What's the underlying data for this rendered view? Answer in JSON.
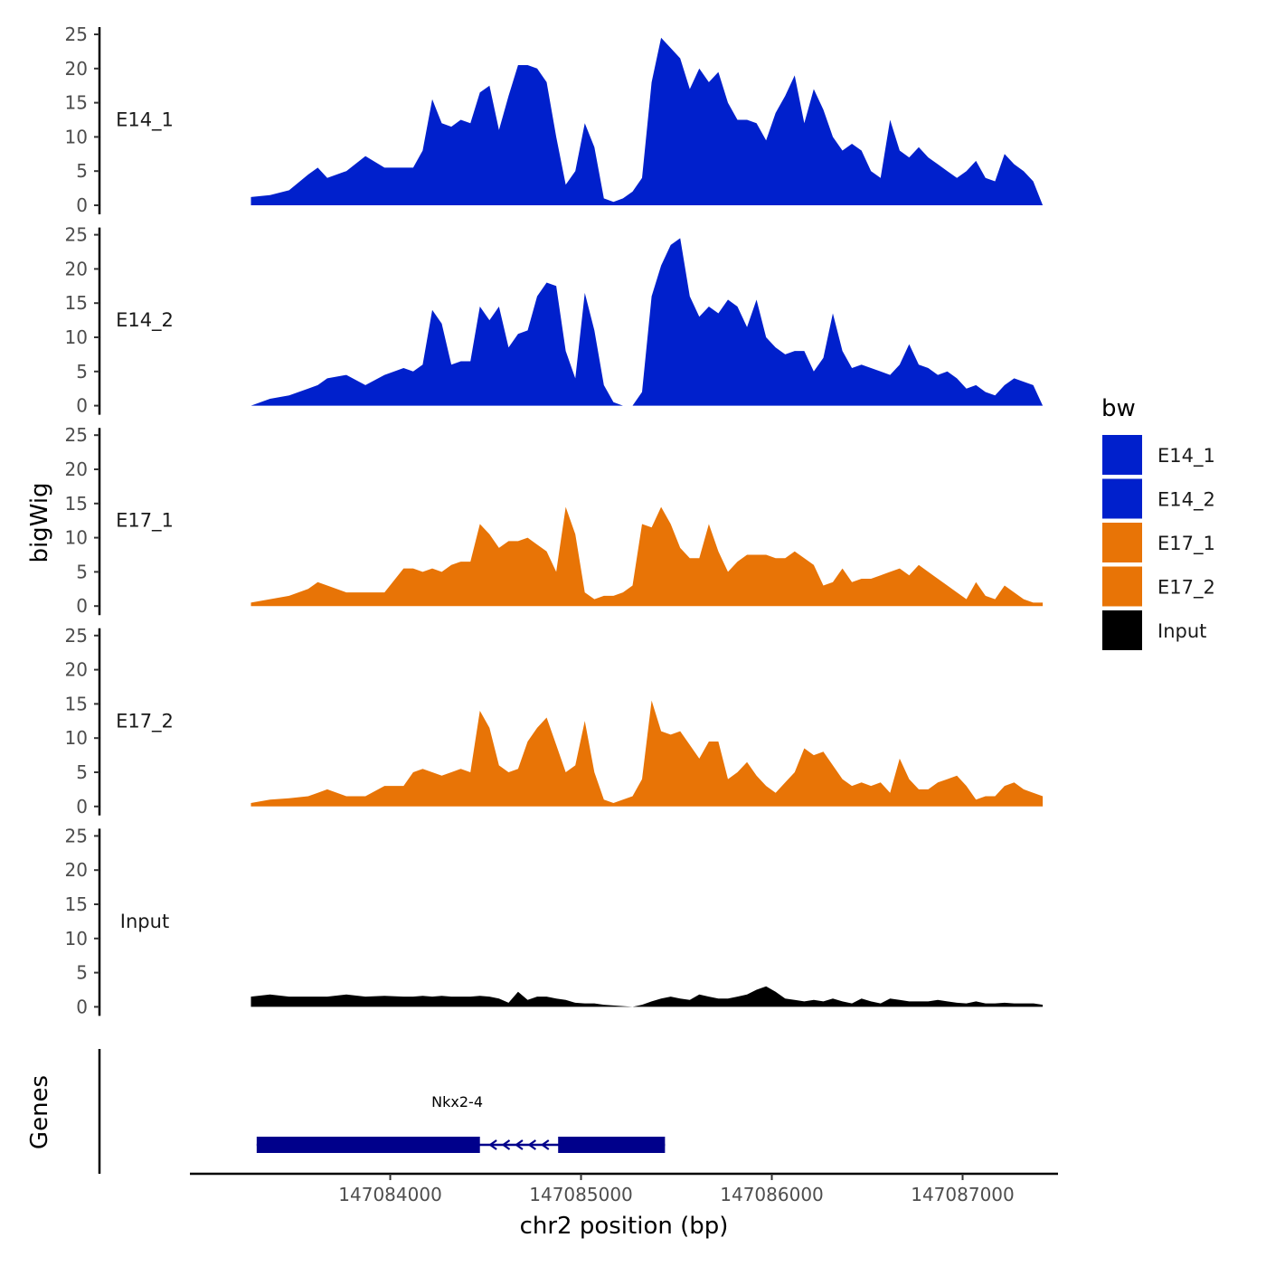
{
  "chart_data": {
    "type": "area",
    "ylabel": "bigWig",
    "xlabel": "chr2 position (bp)",
    "xlim": [
      147082950,
      147087500
    ],
    "ylim": [
      0,
      25
    ],
    "y_ticks": [
      0,
      5,
      10,
      15,
      20,
      25
    ],
    "x_ticks": [
      147084000,
      147085000,
      147086000,
      147087000
    ],
    "x_tick_labels": [
      "147084000",
      "147085000",
      "147086000",
      "147087000"
    ],
    "y_tick_labels": [
      "0",
      "5",
      "10",
      "15",
      "20",
      "25"
    ],
    "legend": {
      "title": "bw",
      "position": "right",
      "entries": [
        {
          "label": "E14_1",
          "color": "#0020CC"
        },
        {
          "label": "E14_2",
          "color": "#0020CC"
        },
        {
          "label": "E17_1",
          "color": "#E87406"
        },
        {
          "label": "E17_2",
          "color": "#E87406"
        },
        {
          "label": "Input",
          "color": "#000000"
        }
      ]
    },
    "x": [
      147083270,
      147083370,
      147083470,
      147083570,
      147083620,
      147083670,
      147083770,
      147083870,
      147083970,
      147084070,
      147084120,
      147084170,
      147084220,
      147084270,
      147084320,
      147084370,
      147084420,
      147084470,
      147084520,
      147084570,
      147084620,
      147084670,
      147084720,
      147084770,
      147084820,
      147084870,
      147084920,
      147084970,
      147085020,
      147085070,
      147085120,
      147085170,
      147085220,
      147085270,
      147085320,
      147085370,
      147085420,
      147085470,
      147085520,
      147085570,
      147085620,
      147085670,
      147085720,
      147085770,
      147085820,
      147085870,
      147085920,
      147085970,
      147086020,
      147086070,
      147086120,
      147086170,
      147086220,
      147086270,
      147086320,
      147086370,
      147086420,
      147086470,
      147086520,
      147086570,
      147086620,
      147086670,
      147086720,
      147086770,
      147086820,
      147086870,
      147086920,
      147086970,
      147087020,
      147087070,
      147087120,
      147087170,
      147087220,
      147087270,
      147087320,
      147087370,
      147087420
    ],
    "series": [
      {
        "name": "E14_1",
        "color": "#0020CC",
        "values": [
          1.2,
          1.5,
          2.2,
          4.5,
          5.5,
          4,
          5,
          7.2,
          5.5,
          5.5,
          5.5,
          8,
          15.5,
          12,
          11.5,
          12.5,
          12,
          16.5,
          17.5,
          11,
          16,
          20.5,
          20.5,
          20,
          18,
          10,
          3,
          5,
          12,
          8.5,
          1,
          0.5,
          1,
          2,
          4,
          18,
          24.5,
          23,
          21.5,
          17,
          20,
          18,
          19.5,
          15,
          12.5,
          12.5,
          12,
          9.5,
          13.5,
          16,
          19,
          12,
          17,
          14,
          10,
          8,
          9,
          8,
          5,
          4,
          12.5,
          8,
          7,
          8.5,
          7,
          6,
          5,
          4,
          5,
          6.5,
          4,
          3.5,
          7.5,
          6,
          5,
          3.5,
          0
        ]
      },
      {
        "name": "E14_2",
        "color": "#0020CC",
        "values": [
          0,
          1,
          1.5,
          2.5,
          3,
          4,
          4.5,
          3,
          4.5,
          5.5,
          5,
          6,
          14,
          12,
          6,
          6.5,
          6.5,
          14.5,
          12.5,
          14.5,
          8.5,
          10.5,
          11,
          16,
          18,
          17.5,
          8,
          4,
          16.5,
          11,
          3,
          0.5,
          0,
          0,
          2,
          16,
          20.5,
          23.5,
          24.5,
          16,
          13,
          14.5,
          13.5,
          15.5,
          14.5,
          11.5,
          15.5,
          10,
          8.5,
          7.5,
          8,
          8,
          5,
          7,
          13.5,
          8,
          5.5,
          6,
          5.5,
          5,
          4.5,
          6,
          9,
          6,
          5.5,
          4.5,
          5,
          4,
          2.5,
          3,
          2,
          1.5,
          3,
          4,
          3.5,
          3,
          0
        ]
      },
      {
        "name": "E17_1",
        "color": "#E87406",
        "values": [
          0.5,
          1,
          1.5,
          2.5,
          3.5,
          3,
          2,
          2,
          2,
          5.5,
          5.5,
          5,
          5.5,
          5,
          6,
          6.5,
          6.5,
          12,
          10.5,
          8.5,
          9.5,
          9.5,
          10,
          9,
          8,
          5,
          14.5,
          10.5,
          2,
          1,
          1.5,
          1.5,
          2,
          3,
          12,
          11.5,
          14.5,
          12,
          8.5,
          7,
          7,
          12,
          8,
          5,
          6.5,
          7.5,
          7.5,
          7.5,
          7,
          7,
          8,
          7,
          6,
          3,
          3.5,
          5.5,
          3.5,
          4,
          4,
          4.5,
          5,
          5.5,
          4.5,
          6,
          5,
          4,
          3,
          2,
          1,
          3.5,
          1.5,
          1,
          3,
          2,
          1,
          0.5,
          0.5
        ]
      },
      {
        "name": "E17_2",
        "color": "#E87406",
        "values": [
          0.5,
          1,
          1.2,
          1.5,
          2,
          2.5,
          1.5,
          1.5,
          3,
          3,
          5,
          5.5,
          5,
          4.5,
          5,
          5.5,
          5,
          14,
          11.5,
          6,
          5,
          5.5,
          9.5,
          11.5,
          13,
          9,
          5,
          6,
          12.5,
          5,
          1,
          0.5,
          1,
          1.5,
          4,
          15.5,
          11,
          10.5,
          11,
          9,
          7,
          9.5,
          9.5,
          4,
          5,
          6.5,
          4.5,
          3,
          2,
          3.5,
          5,
          8.5,
          7.5,
          8,
          6,
          4,
          3,
          3.5,
          3,
          3.5,
          2,
          7,
          4,
          2.5,
          2.5,
          3.5,
          4,
          4.5,
          3,
          1,
          1.5,
          1.5,
          3,
          3.5,
          2.5,
          2,
          1.5
        ]
      },
      {
        "name": "Input",
        "color": "#000000",
        "values": [
          1.5,
          1.8,
          1.5,
          1.5,
          1.5,
          1.5,
          1.8,
          1.5,
          1.6,
          1.5,
          1.5,
          1.6,
          1.5,
          1.6,
          1.5,
          1.5,
          1.5,
          1.6,
          1.5,
          1.2,
          0.6,
          2.2,
          1,
          1.5,
          1.5,
          1.2,
          1,
          0.6,
          0.5,
          0.5,
          0.3,
          0.2,
          0.1,
          0,
          0.3,
          0.8,
          1.2,
          1.5,
          1.2,
          1,
          1.8,
          1.5,
          1.2,
          1.2,
          1.5,
          1.8,
          2.5,
          3,
          2.2,
          1.2,
          1,
          0.8,
          1,
          0.8,
          1.2,
          0.8,
          0.5,
          1.2,
          0.8,
          0.5,
          1.2,
          1,
          0.8,
          0.8,
          0.8,
          1,
          0.8,
          0.6,
          0.5,
          0.8,
          0.5,
          0.5,
          0.6,
          0.5,
          0.5,
          0.5,
          0.3
        ]
      }
    ],
    "gene_track": {
      "title": "Genes",
      "gene": "Nkx2-4",
      "strand": "-",
      "start": 147083300,
      "end": 147085440,
      "color": "#00008B",
      "exons": [
        [
          147083300,
          147084470
        ],
        [
          147084880,
          147085440
        ]
      ]
    }
  }
}
